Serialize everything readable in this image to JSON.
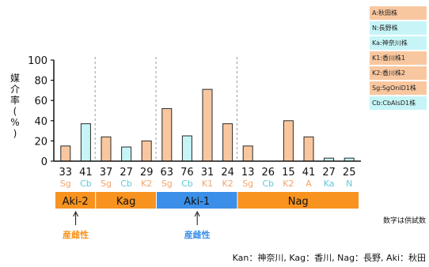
{
  "chart_data": {
    "type": "bar",
    "ylabel": "媒介率(%)",
    "ylim": [
      0,
      100
    ],
    "yticks": [
      0,
      20,
      40,
      60,
      80,
      100
    ],
    "bars": [
      {
        "group": "Aki-2",
        "n": "33",
        "code": "Sg",
        "value": 15,
        "series": "Sg"
      },
      {
        "group": "Aki-2",
        "n": "41",
        "code": "Cb",
        "value": 37,
        "series": "Cb"
      },
      {
        "group": "Kag",
        "n": "37",
        "code": "Sg",
        "value": 24,
        "series": "Sg"
      },
      {
        "group": "Kag",
        "n": "27",
        "code": "Cb",
        "value": 14,
        "series": "Cb"
      },
      {
        "group": "Kag",
        "n": "29",
        "code": "K2",
        "value": 20,
        "series": "K2"
      },
      {
        "group": "Aki-1",
        "n": "63",
        "code": "Sg",
        "value": 52,
        "series": "Sg"
      },
      {
        "group": "Aki-1",
        "n": "76",
        "code": "Cb",
        "value": 25,
        "series": "Cb"
      },
      {
        "group": "Aki-1",
        "n": "31",
        "code": "K1",
        "value": 71,
        "series": "K1"
      },
      {
        "group": "Aki-1",
        "n": "24",
        "code": "K2",
        "value": 37,
        "series": "K2"
      },
      {
        "group": "Nag",
        "n": "13",
        "code": "Sg",
        "value": 15,
        "series": "Sg"
      },
      {
        "group": "Nag",
        "n": "26",
        "code": "Cb",
        "value": 0,
        "series": "Cb"
      },
      {
        "group": "Nag",
        "n": "15",
        "code": "K2",
        "value": 40,
        "series": "K2"
      },
      {
        "group": "Nag",
        "n": "41",
        "code": "A",
        "value": 24,
        "series": "A"
      },
      {
        "group": "Nag",
        "n": "27",
        "code": "Ka",
        "value": 3,
        "series": "Ka"
      },
      {
        "group": "Nag",
        "n": "25",
        "code": "N",
        "value": 3,
        "series": "N"
      }
    ],
    "groups": [
      {
        "label": "Aki-2",
        "color": "#f7931e"
      },
      {
        "label": "Kag",
        "color": "#f7931e"
      },
      {
        "label": "Aki-1",
        "color": "#3b8fe8"
      },
      {
        "label": "Nag",
        "color": "#f7931e"
      }
    ],
    "legend": [
      {
        "label": "A:秋田株",
        "color": "#f9c79f"
      },
      {
        "label": "N:長野株",
        "color": "#c7f5f7"
      },
      {
        "label": "Ka:神奈川株",
        "color": "#c7f5f7"
      },
      {
        "label": "K1:香川株1",
        "color": "#f9c79f"
      },
      {
        "label": "K2:香川株2",
        "color": "#f9c79f"
      },
      {
        "label": "Sg:SgOniD1株",
        "color": "#f9c79f"
      },
      {
        "label": "Cb:CbAlsD1株",
        "color": "#c7f5f7"
      }
    ],
    "annotations": [
      {
        "label": "産雌性",
        "color": "#f7931e",
        "group": "Aki-2"
      },
      {
        "label": "産雌性",
        "color": "#3b8fe8",
        "group": "Aki-1"
      }
    ],
    "note": "数字は供試数",
    "footer": "Kan：神奈川, Kag：香川, Nag：長野, Aki：秋田"
  },
  "colors": {
    "orange_fill": "#f9c79f",
    "cyan_fill": "#c7f5f7",
    "bar_stroke": "#2a2a2a",
    "code_orange": "#f4a46a",
    "code_cyan": "#5fc8d8"
  }
}
